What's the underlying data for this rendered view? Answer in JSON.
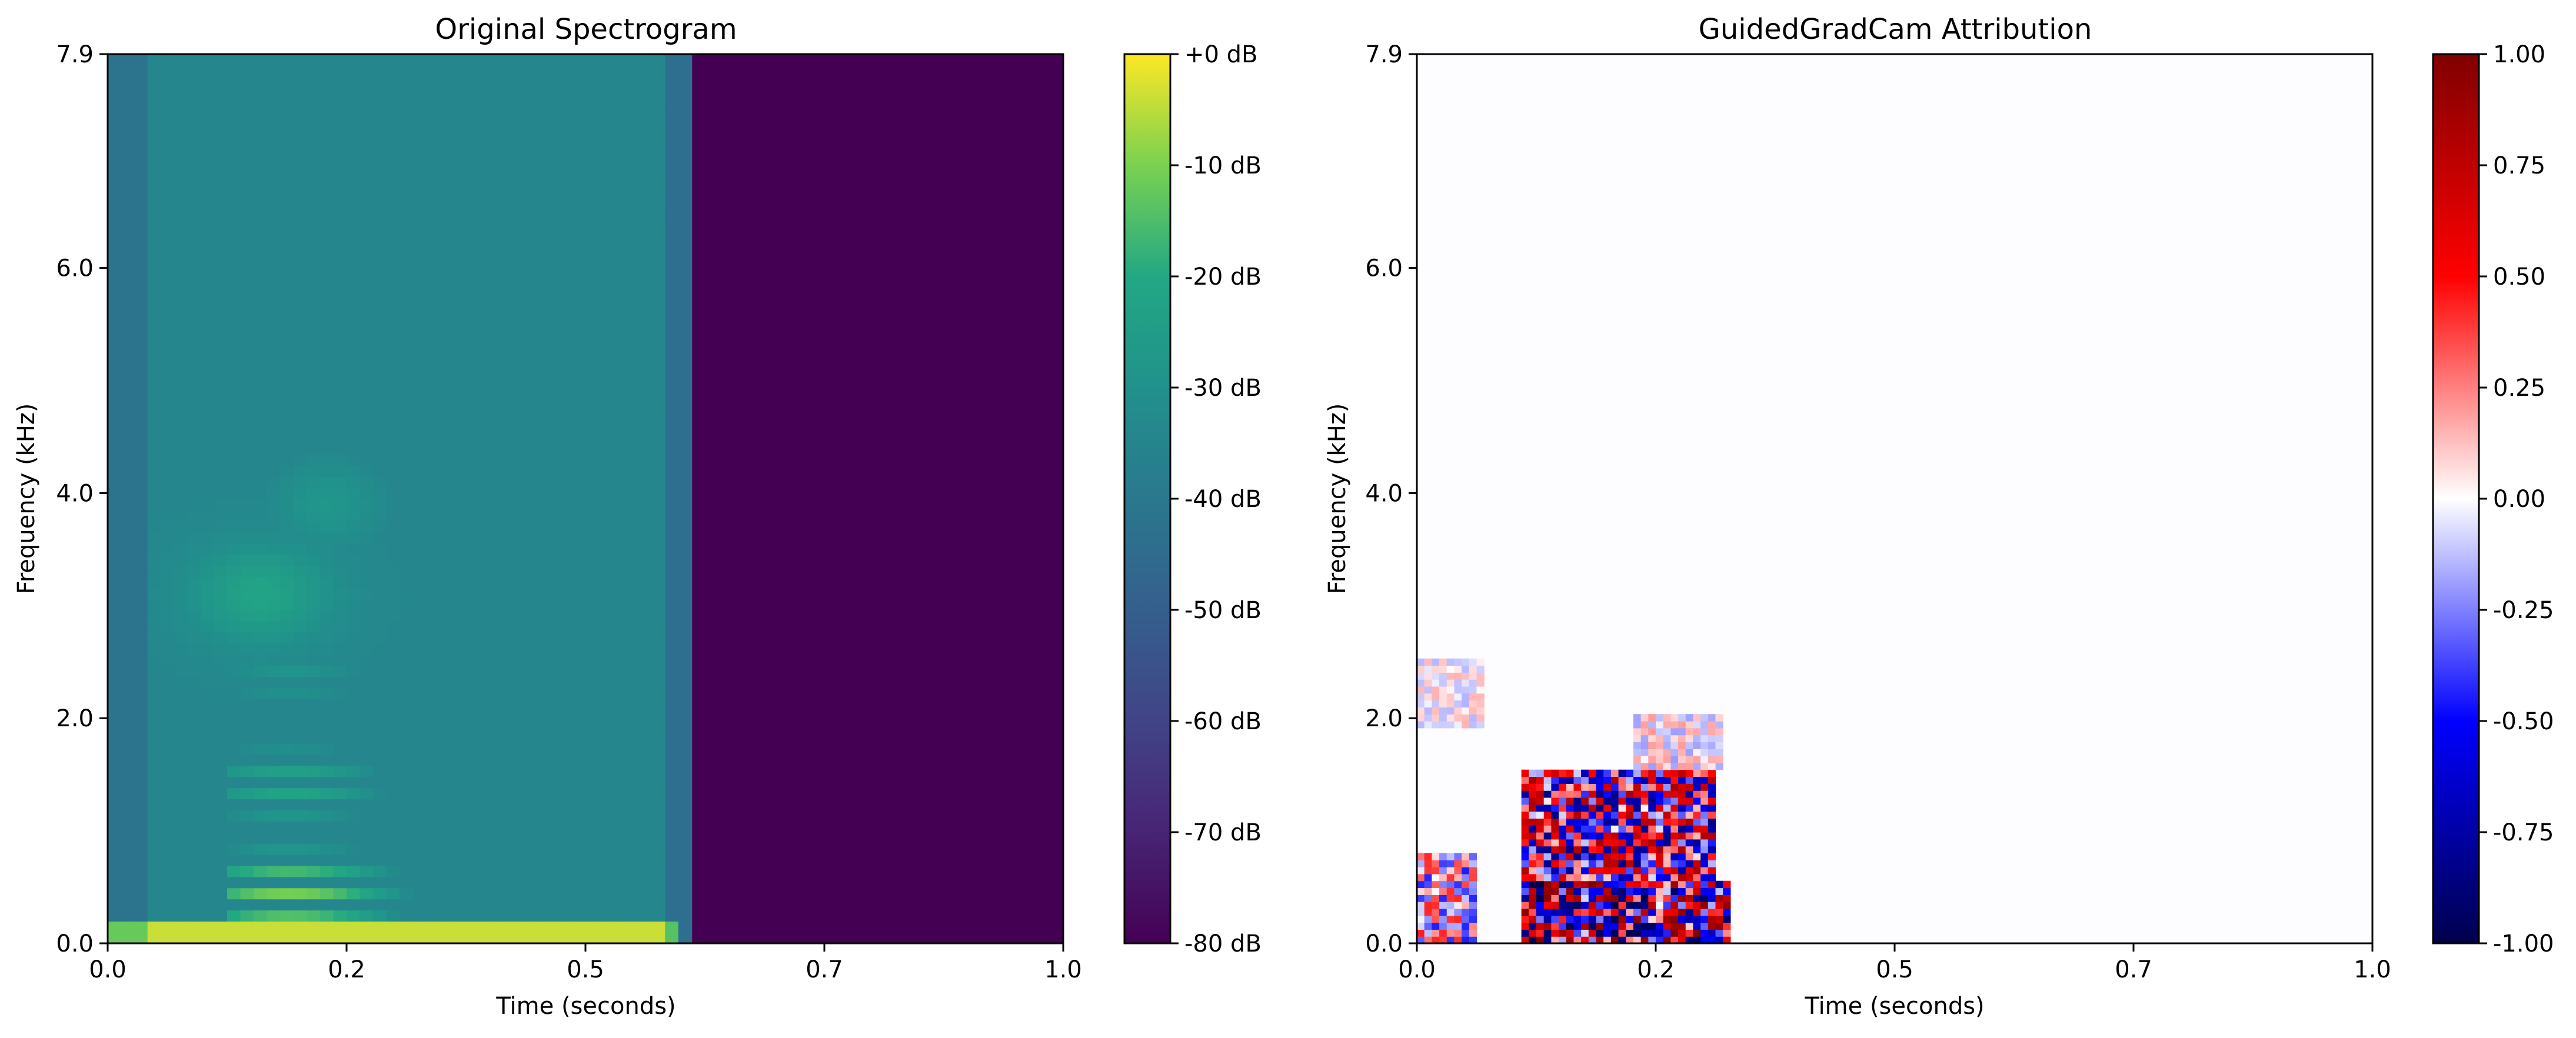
{
  "chart_data": [
    {
      "type": "heatmap",
      "title": "Original Spectrogram",
      "xlabel": "Time (seconds)",
      "ylabel": "Frequency (kHz)",
      "xlim": [
        0,
        1.0
      ],
      "ylim": [
        0,
        7.9
      ],
      "x_ticks": [
        0.0,
        0.25,
        0.5,
        0.75,
        1.0
      ],
      "x_tick_labels": [
        "0.0",
        "0.2",
        "0.5",
        "0.7",
        "1.0"
      ],
      "y_ticks": [
        0.0,
        2.0,
        4.0,
        6.0,
        7.9
      ],
      "y_tick_labels": [
        "0.0",
        "2.0",
        "4.0",
        "6.0",
        "7.9"
      ],
      "colormap": "viridis",
      "colorbar": {
        "range": [
          -80,
          0
        ],
        "ticks": [
          0,
          -10,
          -20,
          -30,
          -40,
          -50,
          -60,
          -70,
          -80
        ],
        "tick_labels": [
          "+0 dB",
          "-10 dB",
          "-20 dB",
          "-30 dB",
          "-40 dB",
          "-50 dB",
          "-60 dB",
          "-70 dB",
          "-80 dB"
        ]
      },
      "features": {
        "signal_end_time": 0.62,
        "silence_level_db": -80,
        "harmonic_band_time_range": [
          0.12,
          0.45
        ],
        "peak_energy_region_khz": [
          0.1,
          2.0
        ]
      }
    },
    {
      "type": "heatmap",
      "title": "GuidedGradCam Attribution",
      "xlabel": "Time (seconds)",
      "ylabel": "Frequency (kHz)",
      "xlim": [
        0,
        1.0
      ],
      "ylim": [
        0,
        7.9
      ],
      "x_ticks": [
        0.0,
        0.25,
        0.5,
        0.75,
        1.0
      ],
      "x_tick_labels": [
        "0.0",
        "0.2",
        "0.5",
        "0.7",
        "1.0"
      ],
      "y_ticks": [
        0.0,
        2.0,
        4.0,
        6.0,
        7.9
      ],
      "y_tick_labels": [
        "0.0",
        "2.0",
        "4.0",
        "6.0",
        "7.9"
      ],
      "colormap": "seismic",
      "colorbar": {
        "range": [
          -1.0,
          1.0
        ],
        "ticks": [
          1.0,
          0.75,
          0.5,
          0.25,
          0.0,
          -0.25,
          -0.5,
          -0.75,
          -1.0
        ],
        "tick_labels": [
          "1.00",
          "0.75",
          "0.50",
          "0.25",
          "0.00",
          "-0.25",
          "-0.50",
          "-0.75",
          "-1.00"
        ]
      },
      "regions": [
        {
          "t": [
            0.11,
            0.33
          ],
          "f": [
            0.0,
            0.55
          ],
          "intensity": 1.0
        },
        {
          "t": [
            0.11,
            0.31
          ],
          "f": [
            0.55,
            1.55
          ],
          "intensity": 0.85
        },
        {
          "t": [
            0.0,
            0.06
          ],
          "f": [
            0.0,
            0.8
          ],
          "intensity": 0.45
        },
        {
          "t": [
            0.0,
            0.07
          ],
          "f": [
            1.9,
            2.55
          ],
          "intensity": 0.15
        },
        {
          "t": [
            0.23,
            0.32
          ],
          "f": [
            1.55,
            2.05
          ],
          "intensity": 0.2
        }
      ]
    }
  ],
  "colors": {
    "background": "#ffffff",
    "axes": "#000000",
    "silence": "#440154"
  }
}
